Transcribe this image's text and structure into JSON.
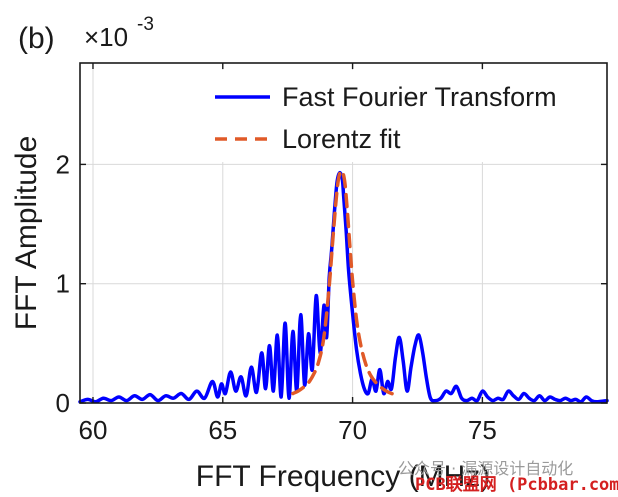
{
  "chart_data": {
    "type": "line",
    "panel_label": "(b)",
    "multiplier_base": "×10",
    "multiplier_exp": "-3",
    "xlabel": "FFT Frequency (MHz)",
    "ylabel": "FFT Amplitude",
    "xlim": [
      59.5,
      79.8
    ],
    "ylim": [
      0,
      2.85
    ],
    "xticks": [
      60,
      65,
      70,
      75
    ],
    "xtick_labels": [
      "60",
      "65",
      "70",
      "75"
    ],
    "yticks": [
      0,
      1,
      2
    ],
    "ytick_labels": [
      "0",
      "1",
      "2"
    ],
    "grid": true,
    "legend_position": "top-right",
    "series": [
      {
        "name": "Fast Fourier Transform",
        "color": "#0000ff",
        "style": "solid",
        "x": [
          59.5,
          59.8,
          60.1,
          60.4,
          60.7,
          61.0,
          61.3,
          61.6,
          61.9,
          62.2,
          62.5,
          62.8,
          63.1,
          63.4,
          63.7,
          64.0,
          64.3,
          64.6,
          64.8,
          64.95,
          65.1,
          65.3,
          65.5,
          65.7,
          65.9,
          66.1,
          66.3,
          66.5,
          66.65,
          66.8,
          66.95,
          67.1,
          67.25,
          67.4,
          67.55,
          67.7,
          67.85,
          68.0,
          68.15,
          68.3,
          68.45,
          68.6,
          68.75,
          68.9,
          69.0,
          69.1,
          69.2,
          69.3,
          69.4,
          69.5,
          69.6,
          69.65,
          69.75,
          69.85,
          70.0,
          70.15,
          70.3,
          70.45,
          70.6,
          70.75,
          70.9,
          71.05,
          71.2,
          71.35,
          71.5,
          71.65,
          71.8,
          71.95,
          72.1,
          72.25,
          72.4,
          72.55,
          72.7,
          72.85,
          73.0,
          73.2,
          73.4,
          73.6,
          73.8,
          74.0,
          74.2,
          74.4,
          74.6,
          74.8,
          75.0,
          75.2,
          75.4,
          75.6,
          75.8,
          76.0,
          76.2,
          76.4,
          76.6,
          76.8,
          77.0,
          77.2,
          77.4,
          77.6,
          77.8,
          78.0,
          78.2,
          78.4,
          78.6,
          78.8,
          79.0,
          79.2,
          79.4,
          79.8
        ],
        "y": [
          0.01,
          0.03,
          0.01,
          0.04,
          0.02,
          0.05,
          0.02,
          0.06,
          0.03,
          0.07,
          0.02,
          0.06,
          0.04,
          0.08,
          0.03,
          0.1,
          0.04,
          0.18,
          0.05,
          0.16,
          0.08,
          0.26,
          0.1,
          0.22,
          0.06,
          0.3,
          0.09,
          0.42,
          0.12,
          0.48,
          0.1,
          0.57,
          0.05,
          0.67,
          0.04,
          0.6,
          0.1,
          0.74,
          0.15,
          0.58,
          0.28,
          0.9,
          0.42,
          0.82,
          0.55,
          1.05,
          1.3,
          1.6,
          1.85,
          1.93,
          1.88,
          1.75,
          1.45,
          1.1,
          0.75,
          0.45,
          0.25,
          0.12,
          0.08,
          0.2,
          0.1,
          0.28,
          0.08,
          0.18,
          0.12,
          0.38,
          0.55,
          0.35,
          0.1,
          0.3,
          0.48,
          0.57,
          0.42,
          0.2,
          0.04,
          0.02,
          0.04,
          0.1,
          0.08,
          0.14,
          0.04,
          0.02,
          0.04,
          0.02,
          0.1,
          0.05,
          0.02,
          0.04,
          0.03,
          0.1,
          0.06,
          0.03,
          0.08,
          0.04,
          0.02,
          0.06,
          0.02,
          0.05,
          0.03,
          0.02,
          0.04,
          0.02,
          0.03,
          0.01,
          0.05,
          0.02,
          0.01,
          0.02
        ]
      },
      {
        "name": "Lorentz fit",
        "color": "#e05a28",
        "style": "dashed",
        "x": [
          67.7,
          67.9,
          68.1,
          68.3,
          68.5,
          68.7,
          68.9,
          69.1,
          69.25,
          69.4,
          69.5,
          69.6,
          69.7,
          69.8,
          69.9,
          70.0,
          70.15,
          70.3,
          70.5,
          70.7,
          70.9,
          71.1,
          71.3,
          71.5,
          71.7
        ],
        "y": [
          0.08,
          0.1,
          0.13,
          0.17,
          0.24,
          0.35,
          0.56,
          0.98,
          1.4,
          1.78,
          1.92,
          1.94,
          1.85,
          1.6,
          1.3,
          1.02,
          0.7,
          0.5,
          0.33,
          0.23,
          0.17,
          0.13,
          0.1,
          0.08,
          0.07
        ]
      }
    ]
  },
  "watermark": {
    "line1": "公众号 · 漏源设计自动化",
    "line2": "PCB联盟网 (Pcbbar.com)"
  }
}
